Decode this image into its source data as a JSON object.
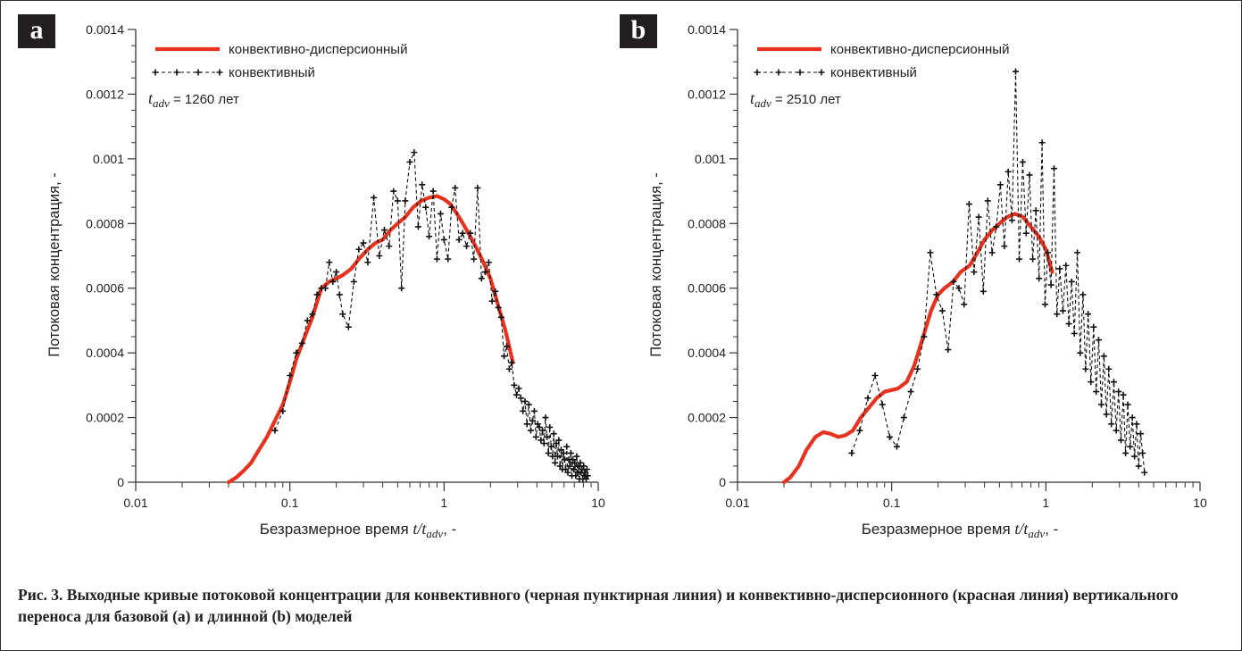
{
  "caption": "Рис. 3. Выходные кривые потоковой концентрации для конвективного (черная пунктирная линия) и конвективно-дисперсионного (красная линия) вертикального переноса для базовой (a) и длинной (b) моделей",
  "colors": {
    "dispersive": "#e8321e",
    "convective": "#111111",
    "panel_label_bg": "#231f20"
  },
  "chart_data": [
    {
      "type": "line",
      "panel": "a",
      "xscale": "log",
      "xlim": [
        0.01,
        10
      ],
      "ylim": [
        0,
        0.0014
      ],
      "xticks": [
        0.01,
        0.1,
        1,
        10
      ],
      "xtick_labels": [
        "0.01",
        "0.1",
        "1",
        "10"
      ],
      "yticks": [
        0,
        0.0002,
        0.0004,
        0.0006,
        0.0008,
        0.001,
        0.0012,
        0.0014
      ],
      "ytick_labels": [
        "0",
        "0.0002",
        "0.0004",
        "0.0006",
        "0.0008",
        "0.001",
        "0.0012",
        "0.0014"
      ],
      "xlabel": "Безразмерное время t/tadv, -",
      "ylabel": "Потоковая концентрация, -",
      "annotation": "tadv = 1260 лет",
      "legend_position": "top-left",
      "series": [
        {
          "name": "конвективно-дисперсионный",
          "style": "solid",
          "x": [
            0.04,
            0.045,
            0.05,
            0.056,
            0.063,
            0.071,
            0.08,
            0.09,
            0.1,
            0.11,
            0.125,
            0.14,
            0.16,
            0.18,
            0.2,
            0.22,
            0.25,
            0.28,
            0.32,
            0.36,
            0.4,
            0.45,
            0.5,
            0.56,
            0.63,
            0.71,
            0.8,
            0.9,
            1.0,
            1.1,
            1.25,
            1.4,
            1.6,
            1.8,
            2.0,
            2.2,
            2.5,
            2.8
          ],
          "y": [
            0,
            1.5e-05,
            3.5e-05,
            6e-05,
            0.0001,
            0.00014,
            0.00019,
            0.00024,
            0.00031,
            0.00038,
            0.00045,
            0.00051,
            0.0006,
            0.00062,
            0.00063,
            0.00064,
            0.00066,
            0.00069,
            0.00072,
            0.00074,
            0.00075,
            0.00078,
            0.0008,
            0.00082,
            0.00085,
            0.00087,
            0.00088,
            0.000885,
            0.000875,
            0.00086,
            0.00082,
            0.00078,
            0.00073,
            0.00068,
            0.00063,
            0.00056,
            0.00047,
            0.00037
          ]
        },
        {
          "name": "конвективный",
          "style": "dashed-markers",
          "x": [
            0.08,
            0.09,
            0.1,
            0.11,
            0.12,
            0.13,
            0.14,
            0.15,
            0.16,
            0.17,
            0.18,
            0.19,
            0.2,
            0.21,
            0.22,
            0.24,
            0.26,
            0.28,
            0.3,
            0.32,
            0.35,
            0.38,
            0.41,
            0.44,
            0.47,
            0.5,
            0.53,
            0.56,
            0.6,
            0.64,
            0.68,
            0.72,
            0.76,
            0.8,
            0.85,
            0.9,
            0.95,
            1.0,
            1.06,
            1.12,
            1.18,
            1.25,
            1.32,
            1.4,
            1.48,
            1.56,
            1.65,
            1.75,
            1.85,
            1.95,
            2.05,
            2.15,
            2.25,
            2.35,
            2.45,
            2.55,
            2.65,
            2.75,
            2.85,
            2.95,
            3.05,
            3.15,
            3.25,
            3.35,
            3.45,
            3.55,
            3.65,
            3.75,
            3.85,
            3.95,
            4.05,
            4.15,
            4.25,
            4.35,
            4.45,
            4.55,
            4.65,
            4.75,
            4.85,
            4.95,
            5.05,
            5.15,
            5.25,
            5.35,
            5.45,
            5.55,
            5.65,
            5.75,
            5.85,
            5.95,
            6.05,
            6.15,
            6.25,
            6.35,
            6.45,
            6.55,
            6.65,
            6.75,
            6.85,
            6.95,
            7.05,
            7.15,
            7.25,
            7.35,
            7.45,
            7.55,
            7.65,
            7.75,
            7.85,
            7.95,
            8.05,
            8.15,
            8.25,
            8.35,
            8.45,
            8.55
          ],
          "y": [
            0.00016,
            0.00022,
            0.00033,
            0.0004,
            0.00043,
            0.0005,
            0.00052,
            0.00058,
            0.0006,
            0.0006,
            0.00068,
            0.00062,
            0.00065,
            0.00058,
            0.00052,
            0.00048,
            0.00062,
            0.00072,
            0.00074,
            0.00068,
            0.00088,
            0.0007,
            0.00078,
            0.00073,
            0.0009,
            0.00087,
            0.0006,
            0.00087,
            0.00099,
            0.00102,
            0.00079,
            0.00092,
            0.00085,
            0.00076,
            0.0009,
            0.00069,
            0.00083,
            0.00075,
            0.00069,
            0.00085,
            0.00091,
            0.00075,
            0.00077,
            0.00073,
            0.00077,
            0.00069,
            0.00091,
            0.00063,
            0.00065,
            0.00068,
            0.00056,
            0.00059,
            0.00054,
            0.00051,
            0.00039,
            0.00042,
            0.00035,
            0.00037,
            0.0003,
            0.00027,
            0.00029,
            0.00026,
            0.00022,
            0.00025,
            0.00018,
            0.00024,
            0.00016,
            0.00019,
            0.00022,
            0.00014,
            0.00018,
            0.00017,
            0.00013,
            0.00016,
            0.00012,
            0.0002,
            0.00014,
            9e-05,
            0.00017,
            0.00011,
            8e-05,
            0.00015,
            6e-05,
            0.00012,
            8e-05,
            0.00013,
            5e-05,
            0.0001,
            4e-05,
            9e-05,
            7e-05,
            4e-05,
            0.00011,
            3e-05,
            7e-05,
            5e-05,
            9e-05,
            2e-05,
            7e-05,
            4e-05,
            6e-05,
            2e-05,
            8e-05,
            3e-05,
            5e-05,
            1e-05,
            6e-05,
            3e-05,
            4e-05,
            1e-05,
            5e-05,
            2e-05,
            3e-05,
            1e-05,
            4e-05,
            2e-05
          ]
        }
      ]
    },
    {
      "type": "line",
      "panel": "b",
      "xscale": "log",
      "xlim": [
        0.01,
        10
      ],
      "ylim": [
        0,
        0.0014
      ],
      "xticks": [
        0.01,
        0.1,
        1,
        10
      ],
      "xtick_labels": [
        "0.01",
        "0.1",
        "1",
        "10"
      ],
      "yticks": [
        0,
        0.0002,
        0.0004,
        0.0006,
        0.0008,
        0.001,
        0.0012,
        0.0014
      ],
      "ytick_labels": [
        "0",
        "0.0002",
        "0.0004",
        "0.0006",
        "0.0008",
        "0.001",
        "0.0012",
        "0.0014"
      ],
      "xlabel": "Безразмерное время t/tadv, -",
      "ylabel": "Потоковая концентрация, -",
      "annotation": "tadv = 2510 лет",
      "legend_position": "top-left",
      "series": [
        {
          "name": "конвективно-дисперсионный",
          "style": "solid",
          "x": [
            0.02,
            0.022,
            0.025,
            0.028,
            0.032,
            0.036,
            0.04,
            0.045,
            0.05,
            0.056,
            0.063,
            0.071,
            0.08,
            0.09,
            0.1,
            0.11,
            0.125,
            0.14,
            0.16,
            0.18,
            0.2,
            0.22,
            0.25,
            0.28,
            0.32,
            0.36,
            0.4,
            0.45,
            0.5,
            0.56,
            0.63,
            0.71,
            0.8,
            0.9,
            1.0,
            1.1
          ],
          "y": [
            0,
            1.5e-05,
            5e-05,
            0.0001,
            0.00014,
            0.000155,
            0.00015,
            0.00014,
            0.000145,
            0.00016,
            0.0002,
            0.00023,
            0.00026,
            0.00028,
            0.000285,
            0.00029,
            0.00031,
            0.00036,
            0.00045,
            0.00053,
            0.00058,
            0.0006,
            0.00062,
            0.00065,
            0.00067,
            0.00071,
            0.00075,
            0.00078,
            0.0008,
            0.00082,
            0.00083,
            0.00082,
            0.00079,
            0.00076,
            0.00072,
            0.00065
          ]
        },
        {
          "name": "конвективный",
          "style": "dashed-markers",
          "x": [
            0.055,
            0.062,
            0.07,
            0.078,
            0.087,
            0.097,
            0.108,
            0.12,
            0.133,
            0.147,
            0.162,
            0.178,
            0.195,
            0.213,
            0.232,
            0.252,
            0.273,
            0.295,
            0.318,
            0.342,
            0.367,
            0.393,
            0.42,
            0.448,
            0.477,
            0.507,
            0.538,
            0.57,
            0.603,
            0.637,
            0.672,
            0.708,
            0.745,
            0.783,
            0.822,
            0.862,
            0.903,
            0.945,
            0.988,
            1.03,
            1.08,
            1.13,
            1.18,
            1.23,
            1.29,
            1.35,
            1.41,
            1.47,
            1.53,
            1.6,
            1.67,
            1.74,
            1.81,
            1.88,
            1.96,
            2.04,
            2.12,
            2.2,
            2.29,
            2.38,
            2.47,
            2.56,
            2.66,
            2.76,
            2.86,
            2.96,
            3.07,
            3.18,
            3.29,
            3.4,
            3.52,
            3.64,
            3.76,
            3.88,
            4.0,
            4.12,
            4.24,
            4.36
          ],
          "y": [
            9e-05,
            0.00016,
            0.00026,
            0.00033,
            0.00024,
            0.00014,
            0.00011,
            0.0002,
            0.00028,
            0.00035,
            0.00045,
            0.00071,
            0.00058,
            0.00053,
            0.00041,
            0.00062,
            0.0006,
            0.00055,
            0.00086,
            0.00065,
            0.00082,
            0.00059,
            0.00087,
            0.00071,
            0.00079,
            0.00092,
            0.00073,
            0.00096,
            0.00081,
            0.00127,
            0.00069,
            0.00099,
            0.00077,
            0.00095,
            0.00069,
            0.00084,
            0.00063,
            0.00105,
            0.00055,
            0.00071,
            0.00061,
            0.00097,
            0.00052,
            0.00066,
            0.00053,
            0.00067,
            0.00049,
            0.00062,
            0.00046,
            0.00071,
            0.0004,
            0.00058,
            0.00035,
            0.00052,
            0.00031,
            0.00048,
            0.00028,
            0.00044,
            0.00024,
            0.00039,
            0.00021,
            0.00035,
            0.00018,
            0.00031,
            0.00016,
            0.00028,
            0.00013,
            0.00027,
            9e-05,
            0.00024,
            0.00011,
            0.0002,
            8e-05,
            0.00018,
            5e-05,
            0.00015,
            9e-05,
            3e-05
          ]
        }
      ]
    }
  ]
}
